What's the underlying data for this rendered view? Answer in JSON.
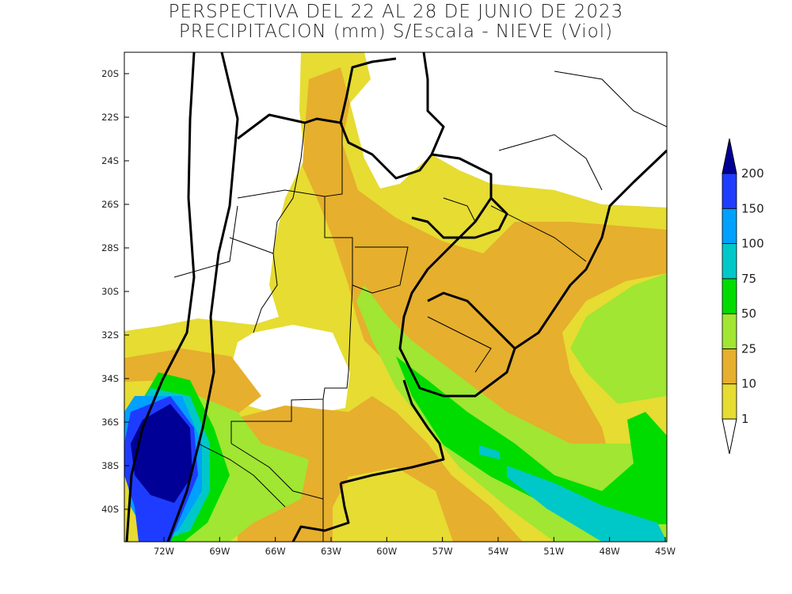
{
  "title": {
    "line1": "PERSPECTIVA DEL 22 AL 28 DE JUNIO DE 2023",
    "line2": "PRECIPITACION (mm) S/Escala - NIEVE (Viol)"
  },
  "axes": {
    "lat_labels": [
      "20S",
      "22S",
      "24S",
      "26S",
      "28S",
      "30S",
      "32S",
      "34S",
      "36S",
      "38S",
      "40S"
    ],
    "lon_labels": [
      "72W",
      "69W",
      "66W",
      "63W",
      "60W",
      "57W",
      "54W",
      "51W",
      "48W",
      "45W"
    ]
  },
  "colorbar": {
    "levels": [
      "1",
      "10",
      "25",
      "50",
      "75",
      "100",
      "150",
      "200"
    ],
    "colors": [
      "#ffffff",
      "#e6dc32",
      "#e6af2d",
      "#a0e632",
      "#00dc00",
      "#00c8c8",
      "#00a0ff",
      "#1e3cff",
      "#000096"
    ]
  }
}
